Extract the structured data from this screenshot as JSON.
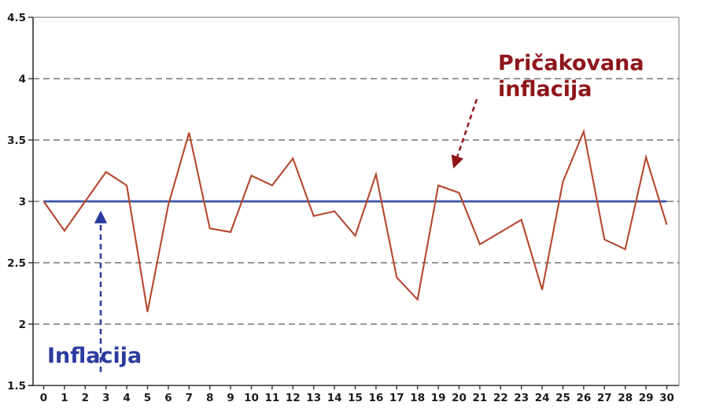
{
  "chart_data": {
    "type": "line",
    "title": "",
    "xlabel": "",
    "ylabel": "",
    "xlim": [
      0,
      30
    ],
    "ylim": [
      1.5,
      4.5
    ],
    "x": [
      0,
      1,
      2,
      3,
      4,
      5,
      6,
      7,
      8,
      9,
      10,
      11,
      12,
      13,
      14,
      15,
      16,
      17,
      18,
      19,
      20,
      21,
      22,
      23,
      24,
      25,
      26,
      27,
      28,
      29,
      30
    ],
    "xtick_labels": [
      "0",
      "1",
      "2",
      "3",
      "4",
      "5",
      "6",
      "7",
      "8",
      "9",
      "10",
      "11",
      "12",
      "13",
      "14",
      "15",
      "16",
      "17",
      "18",
      "19",
      "20",
      "21",
      "22",
      "23",
      "24",
      "25",
      "26",
      "27",
      "28",
      "29",
      "30"
    ],
    "yticks": [
      1.5,
      2,
      2.5,
      3,
      3.5,
      4,
      4.5
    ],
    "ytick_labels": [
      "1.5",
      "2",
      "2.5",
      "3",
      "3.5",
      "4",
      "4.5"
    ],
    "ygrid_dashed": [
      2,
      2.5,
      3,
      3.5,
      4
    ],
    "grid": "dashed horizontal",
    "legend_position": "none",
    "series": [
      {
        "name": "Inflacija",
        "color": "#b4472e",
        "values": [
          3.0,
          2.76,
          3.0,
          3.24,
          3.13,
          2.1,
          2.97,
          3.56,
          2.78,
          2.75,
          3.21,
          3.13,
          3.35,
          2.88,
          2.92,
          2.72,
          3.22,
          2.38,
          2.2,
          3.13,
          3.07,
          2.65,
          2.75,
          2.85,
          2.28,
          3.16,
          3.57,
          2.69,
          2.61,
          3.36,
          2.81
        ]
      },
      {
        "name": "Pričakovana inflacija",
        "color": "#3a52a5",
        "constant": 3.0
      }
    ]
  },
  "annotations": {
    "inflacija": {
      "label": "Inflacija",
      "color": "#2b3b9e"
    },
    "pricakovana": {
      "label": "Pričakovana\ninflacija",
      "color": "#8e161b"
    }
  },
  "colors": {
    "grid": "#2e2e2e",
    "axis": "#333333",
    "border": "#8c8c8c",
    "tick_text": "#1a1a1a"
  }
}
